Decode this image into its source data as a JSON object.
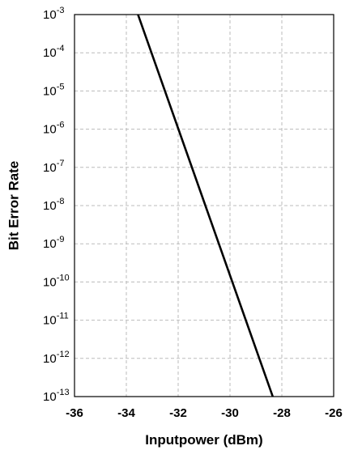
{
  "chart_data": {
    "type": "line",
    "title": "",
    "xlabel": "Inputpower (dBm)",
    "ylabel": "Bit Error Rate",
    "xlim": [
      -36,
      -26
    ],
    "ylim": [
      1e-13,
      0.001
    ],
    "y_scale": "log",
    "grid": true,
    "legend": "none",
    "x_ticks": [
      -36,
      -34,
      -32,
      -30,
      -28,
      -26
    ],
    "x_tick_labels": [
      "-36",
      "-34",
      "-32",
      "-30",
      "-28",
      "-26"
    ],
    "y_ticks": [
      {
        "value": 0.001,
        "base": "10",
        "exp": "-3"
      },
      {
        "value": 0.0001,
        "base": "10",
        "exp": "-4"
      },
      {
        "value": 1e-05,
        "base": "10",
        "exp": "-5"
      },
      {
        "value": 1e-06,
        "base": "10",
        "exp": "-6"
      },
      {
        "value": 1e-07,
        "base": "10",
        "exp": "-7"
      },
      {
        "value": 1e-08,
        "base": "10",
        "exp": "-8"
      },
      {
        "value": 1e-09,
        "base": "10",
        "exp": "-9"
      },
      {
        "value": 1e-10,
        "base": "10",
        "exp": "-10"
      },
      {
        "value": 1e-11,
        "base": "10",
        "exp": "-11"
      },
      {
        "value": 1e-12,
        "base": "10",
        "exp": "-12"
      },
      {
        "value": 1e-13,
        "base": "10",
        "exp": "-13"
      }
    ],
    "series": [
      {
        "color": "#000000",
        "points": [
          {
            "x": -33.55,
            "y": 0.001
          },
          {
            "x": -28.35,
            "y": 1e-13
          }
        ]
      }
    ],
    "colors": {
      "line": "#000000",
      "grid": "#bbbbbb",
      "frame": "#000000",
      "background": "#ffffff"
    }
  }
}
